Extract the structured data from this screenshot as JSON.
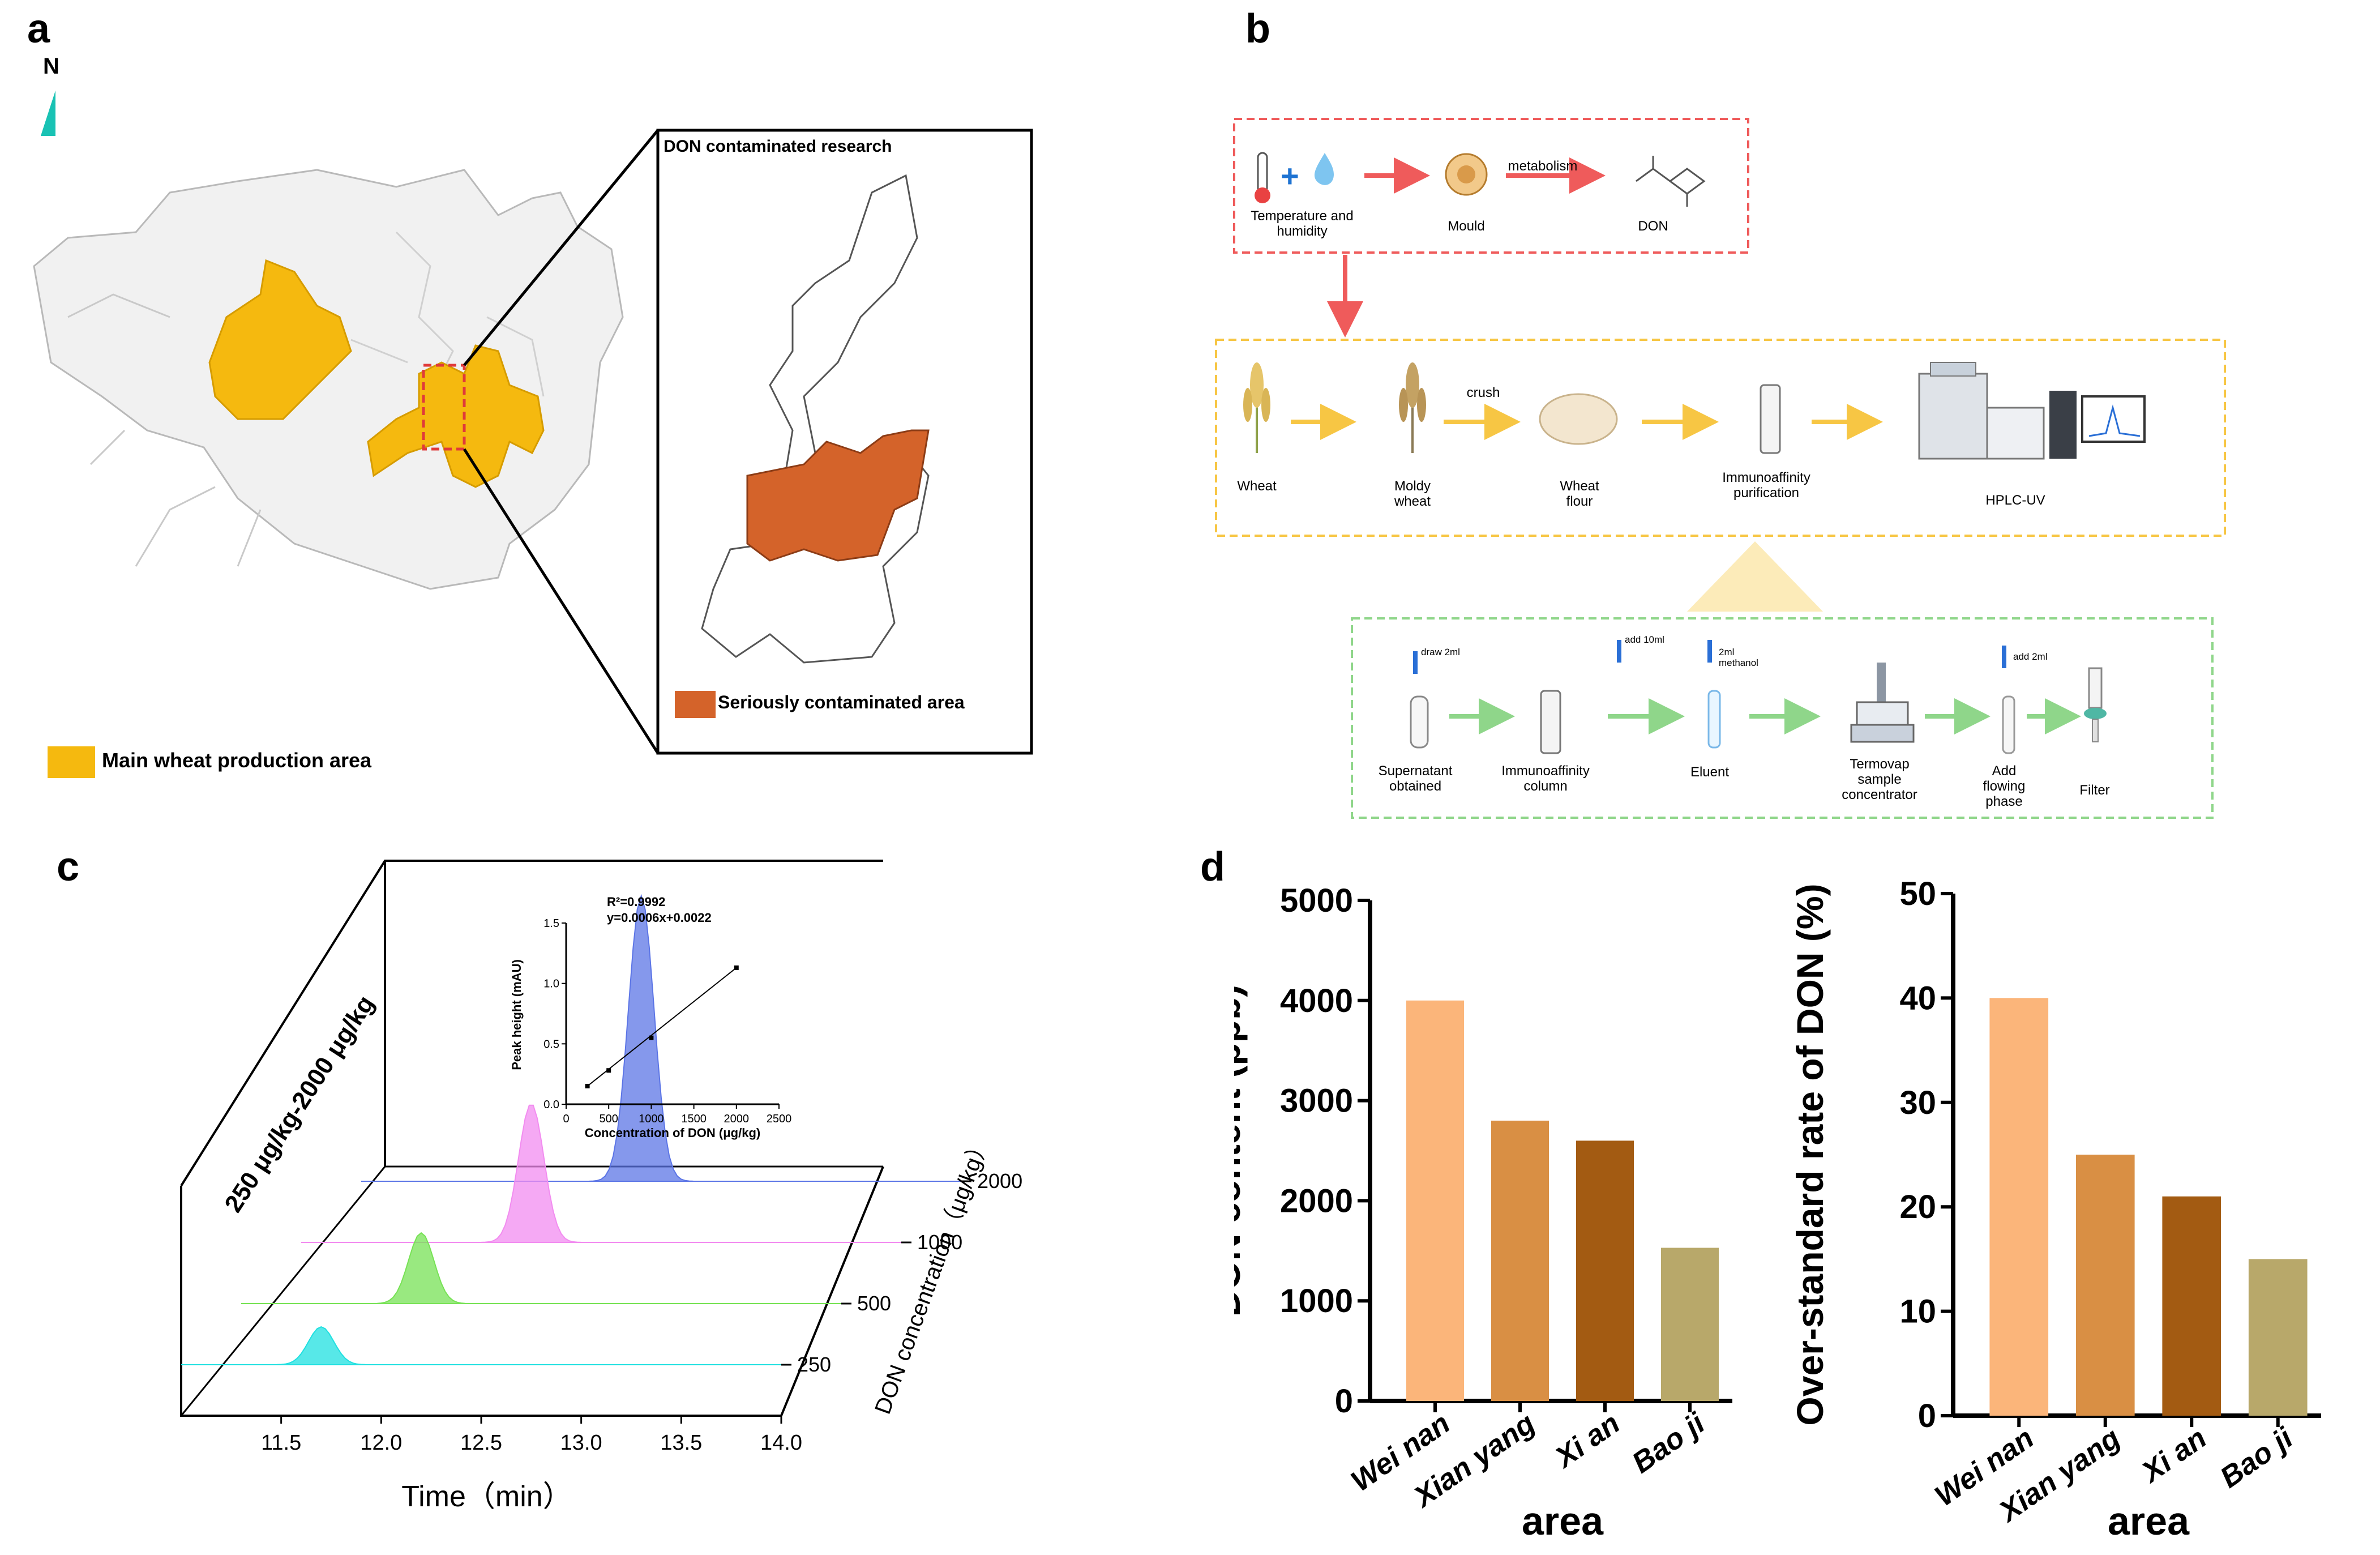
{
  "panels": {
    "a": {
      "letter": "a",
      "north_label": "N",
      "inset_title": "DON contaminated  research",
      "legend_contaminated": "Seriously contaminated area",
      "legend_wheat": "Main wheat production area",
      "colors": {
        "wheat": "#f5b90f",
        "contaminated": "#d4632a",
        "province": "#f0f0f0",
        "north": "#19c2b4"
      }
    },
    "b": {
      "letter": "b",
      "row1": {
        "temp_label": "Temperature and humidity",
        "mould_label": "Mould",
        "metabolism_label": "metabolism",
        "don_label": "DON"
      },
      "row2": {
        "wheat_label": "Wheat",
        "moldy_label": "Moldy wheat",
        "crush_label": "crush",
        "flour_label": "Wheat flour",
        "immuno_label": "Immunoaffinity purification",
        "hplc_label": "HPLC-UV"
      },
      "row3": {
        "draw_label": "draw 2ml",
        "add10_label": "add 10ml",
        "methanol_label": "2ml methanol",
        "add2_label": "add 2ml",
        "supernatant_label": "Supernatant obtained",
        "column_label": "Immunoaffinity column",
        "eluent_label": "Eluent",
        "termovap_label": "Termovap sample concentrator",
        "flowing_label": "Add flowing phase",
        "filter_label": "Filter"
      },
      "colors": {
        "red": "#ef5b5b",
        "yellow": "#f7c644",
        "green": "#8fd68a"
      }
    },
    "c": {
      "letter": "c",
      "chart_data": {
        "type": "line",
        "title": "250 μg/kg-2000 μg/kg",
        "xlabel": "Time（min）",
        "zlabel": "DON concentration（μg/kg）",
        "x_ticks": [
          "11.5",
          "12.0",
          "12.5",
          "13.0",
          "13.5",
          "14.0"
        ],
        "xlim": [
          11.0,
          14.0
        ],
        "series": [
          {
            "name": "2000",
            "color": "#5c75e6",
            "peak_time": 12.4,
            "peak_height": 1.13
          },
          {
            "name": "1000",
            "color": "#f28cf0",
            "peak_time": 12.15,
            "peak_height": 0.55
          },
          {
            "name": "500",
            "color": "#77e255",
            "peak_time": 11.9,
            "peak_height": 0.28
          },
          {
            "name": "250",
            "color": "#1fe0e0",
            "peak_time": 11.7,
            "peak_height": 0.15
          }
        ]
      },
      "inset": {
        "chart_data": {
          "type": "scatter",
          "equation_r2": "R²=0.9992",
          "equation_fit": "y=0.0006x+0.0022",
          "xlabel": "Concentration of DON (μg/kg)",
          "ylabel": "Peak height (mAU)",
          "x_ticks": [
            "0",
            "500",
            "1000",
            "1500",
            "2000",
            "2500"
          ],
          "y_ticks": [
            "0.0",
            "0.5",
            "1.0",
            "1.5"
          ],
          "xlim": [
            0,
            2500
          ],
          "ylim": [
            0,
            1.5
          ],
          "x": [
            250,
            500,
            1000,
            2000
          ],
          "y": [
            0.15,
            0.28,
            0.55,
            1.13
          ]
        }
      }
    },
    "d": {
      "letter": "d",
      "chart_data": [
        {
          "type": "bar",
          "categories": [
            "Wei nan",
            "Xian yang",
            "Xi an",
            "Bao ji"
          ],
          "values": [
            4000,
            2800,
            2600,
            1530
          ],
          "ylabel": "DON content (ppb)",
          "xlabel": "area",
          "ylim": [
            0,
            5000
          ],
          "y_ticks": [
            "0",
            "1000",
            "2000",
            "3000",
            "4000",
            "5000"
          ],
          "colors": [
            "#fbb57a",
            "#d98f44",
            "#a35b12",
            "#b8a86a"
          ]
        },
        {
          "type": "bar",
          "categories": [
            "Wei nan",
            "Xian yang",
            "Xi an",
            "Bao ji"
          ],
          "values": [
            40,
            25,
            21,
            15
          ],
          "ylabel": "Over-standard rate of DON (%)",
          "xlabel": "area",
          "ylim": [
            0,
            50
          ],
          "y_ticks": [
            "0",
            "10",
            "20",
            "30",
            "40",
            "50"
          ],
          "colors": [
            "#fbb57a",
            "#d98f44",
            "#a35b12",
            "#b8a86a"
          ]
        }
      ]
    }
  }
}
